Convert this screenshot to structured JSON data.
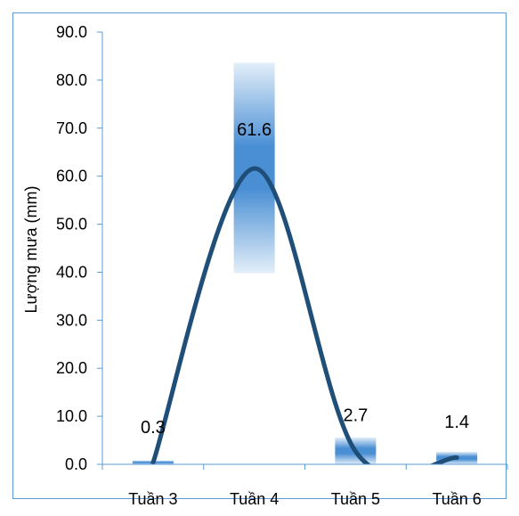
{
  "chart_data": {
    "type": "bar",
    "ylabel": "Lượng mưa (mm)",
    "xlabel": "",
    "ylim": [
      0,
      90
    ],
    "yticks": [
      "0.0",
      "10.0",
      "20.0",
      "30.0",
      "40.0",
      "50.0",
      "60.0",
      "70.0",
      "80.0",
      "90.0"
    ],
    "categories": [
      "Tuần 3",
      "Tuần 4",
      "Tuần 5",
      "Tuần 6"
    ],
    "values": [
      0.3,
      61.6,
      2.7,
      1.4
    ],
    "data_labels": [
      "0.3",
      "61.6",
      "2.7",
      "1.4"
    ],
    "grid": false,
    "legend": "none",
    "bar_color": "#4a8fd4",
    "line_color": "#1f4e79",
    "border_color": "#5b9bd5",
    "bar_extent": [
      {
        "low": 0,
        "high": 0.8
      },
      {
        "low": 39.8,
        "high": 83.6
      },
      {
        "low": 0,
        "high": 5.6
      },
      {
        "low": 0,
        "high": 2.6
      }
    ]
  }
}
